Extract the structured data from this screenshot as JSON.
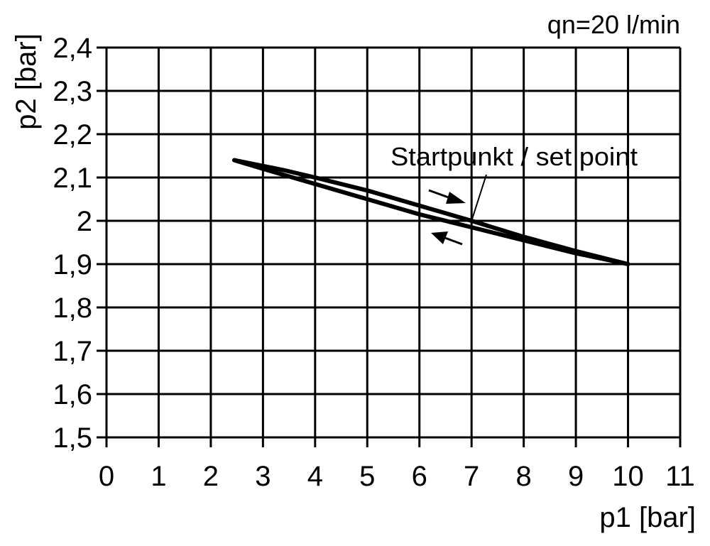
{
  "chart_data": {
    "type": "line",
    "annotation_top_right": "qn=20 l/min",
    "xlabel": "p1 [bar]",
    "ylabel": "p2 [bar]",
    "xlim": [
      0,
      11
    ],
    "ylim": [
      1.5,
      2.4
    ],
    "grid": true,
    "x_ticks": [
      "0",
      "1",
      "2",
      "3",
      "4",
      "5",
      "6",
      "7",
      "8",
      "9",
      "10",
      "11"
    ],
    "y_ticks": [
      "1,5",
      "1,6",
      "1,7",
      "1,8",
      "1,9",
      "2",
      "2,1",
      "2,2",
      "2,3",
      "2,4"
    ],
    "set_point_label": "Startpunkt / set point",
    "set_point": {
      "x": 7,
      "y": 2.0
    },
    "series": [
      {
        "direction": "increasing p1",
        "x": [
          2.45,
          3.4,
          4,
          5,
          6,
          7,
          8,
          9,
          10
        ],
        "y": [
          2.14,
          2.117,
          2.1,
          2.07,
          2.035,
          2.0,
          1.963,
          1.93,
          1.9
        ]
      },
      {
        "direction": "decreasing p1",
        "x": [
          2.45,
          3,
          4,
          5,
          6,
          7,
          8,
          9,
          10
        ],
        "y": [
          2.14,
          2.12,
          2.085,
          2.05,
          2.015,
          1.985,
          1.955,
          1.925,
          1.9
        ]
      }
    ],
    "line_color": "#000000"
  }
}
